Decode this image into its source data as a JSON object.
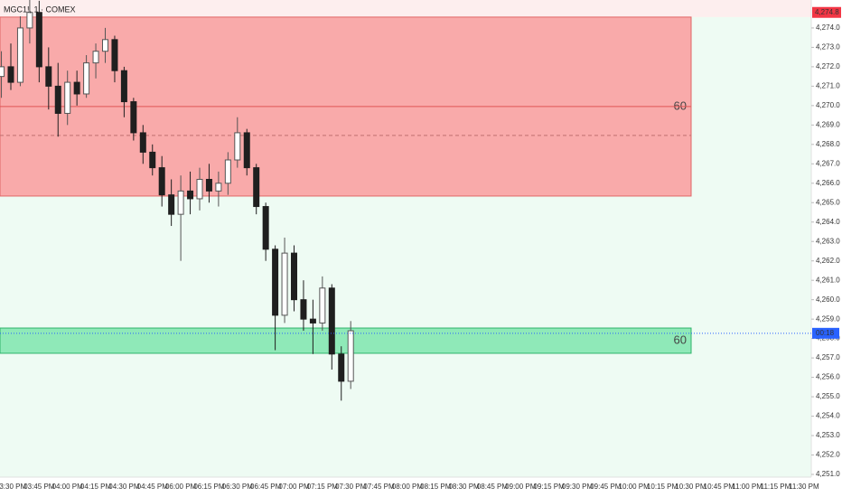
{
  "chart_data": {
    "type": "candlestick",
    "title": "MGC1!, 1 · COMEX",
    "categories": [
      null,
      "03:30 PM",
      null,
      null,
      "03:45 PM",
      null,
      null,
      "04:00 PM",
      null,
      null,
      "04:15 PM",
      null,
      null,
      "04:30 PM",
      null,
      null,
      "04:45 PM",
      null,
      null,
      "06:00 PM",
      null,
      null,
      "06:15 PM",
      null,
      null,
      "06:30 PM",
      null,
      null,
      "06:45 PM",
      null,
      null,
      "07:00 PM",
      null,
      null,
      "07:15 PM",
      null,
      null,
      "07:30 PM",
      null,
      null,
      "07:45 PM",
      null,
      null,
      "08:00 PM",
      null,
      null,
      "08:15 PM",
      null,
      null,
      "08:30 PM",
      null,
      null,
      "08:45 PM",
      null,
      null,
      "09:00 PM",
      null,
      null,
      "09:15 PM",
      null,
      null,
      "09:30 PM",
      null,
      null,
      "09:45 PM",
      null,
      null,
      "10:00 PM",
      null,
      null,
      "10:15 PM",
      null,
      null,
      "10:30 PM",
      null,
      null,
      "10:45 PM",
      null,
      null,
      "11:00 PM",
      null,
      null,
      "11:15 PM",
      null,
      null,
      "11:30 PM"
    ],
    "open": [
      4271.5,
      4272.0,
      4271.2,
      4274.0,
      4274.8,
      4272.0,
      4271.0,
      4269.6,
      4271.2,
      4270.6,
      4272.2,
      4272.8,
      4273.4,
      4271.8,
      4270.2,
      4268.6,
      4267.6,
      4266.8,
      4265.4,
      4264.4,
      4265.6,
      4265.2,
      4266.2,
      4265.6,
      4266.0,
      4267.2,
      4268.6,
      4266.8,
      4264.8,
      4262.6,
      4259.2,
      4262.4,
      4260.0,
      4259.0,
      4258.8,
      4260.6,
      4257.2,
      4255.8,
      null,
      null,
      null,
      null,
      null,
      null,
      null,
      null,
      null,
      null,
      null,
      null,
      null,
      null,
      null,
      null,
      null,
      null,
      null,
      null,
      null,
      null,
      null,
      null,
      null,
      null,
      null,
      null,
      null,
      null,
      null,
      null,
      null,
      null,
      null,
      null,
      null,
      null,
      null,
      null,
      null,
      null,
      null,
      null,
      null,
      null,
      null,
      null
    ],
    "high": [
      4272.8,
      4273.2,
      4274.6,
      4275.6,
      4275.4,
      4273.0,
      4272.2,
      4271.8,
      4271.8,
      4272.6,
      4273.2,
      4274.0,
      4273.6,
      4272.0,
      4270.4,
      4269.0,
      4268.0,
      4267.4,
      4266.2,
      4266.4,
      4266.6,
      4266.8,
      4267.0,
      4266.6,
      4267.6,
      4269.4,
      4268.8,
      4267.0,
      4265.0,
      4262.8,
      4263.2,
      4262.8,
      4261.0,
      4260.0,
      4261.2,
      4260.8,
      4257.6,
      4258.9,
      null,
      null,
      null,
      null,
      null,
      null,
      null,
      null,
      null,
      null,
      null,
      null,
      null,
      null,
      null,
      null,
      null,
      null,
      null,
      null,
      null,
      null,
      null,
      null,
      null,
      null,
      null,
      null,
      null,
      null,
      null,
      null,
      null,
      null,
      null,
      null,
      null,
      null,
      null,
      null,
      null,
      null,
      null,
      null,
      null,
      null,
      null,
      null
    ],
    "low": [
      4270.4,
      4270.8,
      4271.0,
      4273.2,
      4271.2,
      4269.8,
      4268.4,
      4269.0,
      4270.0,
      4270.4,
      4271.4,
      4272.2,
      4271.2,
      4269.4,
      4268.2,
      4267.0,
      4266.4,
      4264.8,
      4263.8,
      4262.0,
      4264.4,
      4264.6,
      4265.0,
      4264.8,
      4265.4,
      4266.8,
      4266.4,
      4264.4,
      4262.0,
      4257.4,
      4258.8,
      4259.4,
      4258.4,
      4257.2,
      4258.4,
      4256.4,
      4254.8,
      4255.4,
      null,
      null,
      null,
      null,
      null,
      null,
      null,
      null,
      null,
      null,
      null,
      null,
      null,
      null,
      null,
      null,
      null,
      null,
      null,
      null,
      null,
      null,
      null,
      null,
      null,
      null,
      null,
      null,
      null,
      null,
      null,
      null,
      null,
      null,
      null,
      null,
      null,
      null,
      null,
      null,
      null,
      null,
      null,
      null,
      null,
      null,
      null,
      null
    ],
    "close": [
      4272.0,
      4271.2,
      4274.0,
      4274.8,
      4272.0,
      4271.0,
      4269.6,
      4271.2,
      4270.6,
      4272.2,
      4272.8,
      4273.4,
      4271.8,
      4270.2,
      4268.6,
      4267.6,
      4266.8,
      4265.4,
      4264.4,
      4265.6,
      4265.2,
      4266.2,
      4265.6,
      4266.0,
      4267.2,
      4268.6,
      4266.8,
      4264.8,
      4262.6,
      4259.2,
      4262.4,
      4260.0,
      4259.0,
      4258.8,
      4260.6,
      4257.2,
      4255.8,
      4258.4,
      null,
      null,
      null,
      null,
      null,
      null,
      null,
      null,
      null,
      null,
      null,
      null,
      null,
      null,
      null,
      null,
      null,
      null,
      null,
      null,
      null,
      null,
      null,
      null,
      null,
      null,
      null,
      null,
      null,
      null,
      null,
      null,
      null,
      null,
      null,
      null,
      null,
      null,
      null,
      null,
      null,
      null,
      null,
      null,
      null,
      null,
      null,
      null
    ],
    "up_color": "#555555",
    "down_color": "#1f1f1f",
    "ylim": [
      4250.86,
      4275.44
    ],
    "yticks": [
      {
        "value": 4251,
        "label": "4,251.0"
      },
      {
        "value": 4252,
        "label": "4,252.0"
      },
      {
        "value": 4253,
        "label": "4,253.0"
      },
      {
        "value": 4254,
        "label": "4,254.0"
      },
      {
        "value": 4255,
        "label": "4,255.0"
      },
      {
        "value": 4256,
        "label": "4,256.0"
      },
      {
        "value": 4257,
        "label": "4,257.0"
      },
      {
        "value": 4258,
        "label": "4,258.0"
      },
      {
        "value": 4259,
        "label": "4,259.0"
      },
      {
        "value": 4260,
        "label": "4,260.0"
      },
      {
        "value": 4261,
        "label": "4,261.0"
      },
      {
        "value": 4262,
        "label": "4,262.0"
      },
      {
        "value": 4263,
        "label": "4,263.0"
      },
      {
        "value": 4264,
        "label": "4,264.0"
      },
      {
        "value": 4265,
        "label": "4,265.0"
      },
      {
        "value": 4266,
        "label": "4,266.0"
      },
      {
        "value": 4267,
        "label": "4,267.0"
      },
      {
        "value": 4268,
        "label": "4,268.0"
      },
      {
        "value": 4269,
        "label": "4,269.0"
      },
      {
        "value": 4270,
        "label": "4,270.0"
      },
      {
        "value": 4271,
        "label": "4,271.0"
      },
      {
        "value": 4272,
        "label": "4,272.0"
      },
      {
        "value": 4273,
        "label": "4,273.0"
      },
      {
        "value": 4274,
        "label": "4,274.0"
      }
    ],
    "zones": [
      {
        "top": 4274.56,
        "bottom": 4265.34,
        "label": "60",
        "color": "#f9aaaa",
        "border": "#e06666"
      },
      {
        "top": 4258.54,
        "bottom": 4257.24,
        "label": "60",
        "color": "#8fe9b8",
        "border": "#2fb36a"
      }
    ],
    "levels": [
      {
        "value": 4269.95,
        "style": "solid",
        "color": "#e05555"
      },
      {
        "value": 4268.46,
        "style": "dashed",
        "color": "#c07070"
      }
    ],
    "price_tag": {
      "value": 4274.8,
      "label": "4,274.8",
      "color": "#f23645"
    },
    "last_price": {
      "value": 4258.27,
      "label": "00:18",
      "color": "#2962ff"
    }
  }
}
